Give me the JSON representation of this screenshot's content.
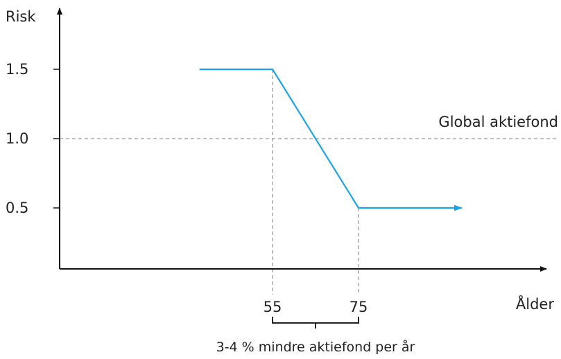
{
  "chart_data": {
    "type": "line",
    "title": "",
    "ylabel": "Risk",
    "xlabel": "Ålder",
    "yticks": [
      "1.5",
      "1.0",
      "0.5"
    ],
    "ytick_values": [
      1.5,
      1.0,
      0.5
    ],
    "xticks": [
      "55",
      "75"
    ],
    "xtick_values": [
      55,
      75
    ],
    "series": [
      {
        "x": [
          38,
          55,
          75,
          99
        ],
        "y": [
          1.5,
          1.5,
          0.5,
          0.5
        ],
        "color": "#1aa3e6",
        "end_arrow": true
      }
    ],
    "reference_line": {
      "y": 1.0,
      "label": "Global aktiefond",
      "color": "#9a9a9a"
    },
    "bracket": {
      "x_range": [
        55,
        75
      ],
      "label": "3-4 % mindre aktiefond per år"
    }
  }
}
